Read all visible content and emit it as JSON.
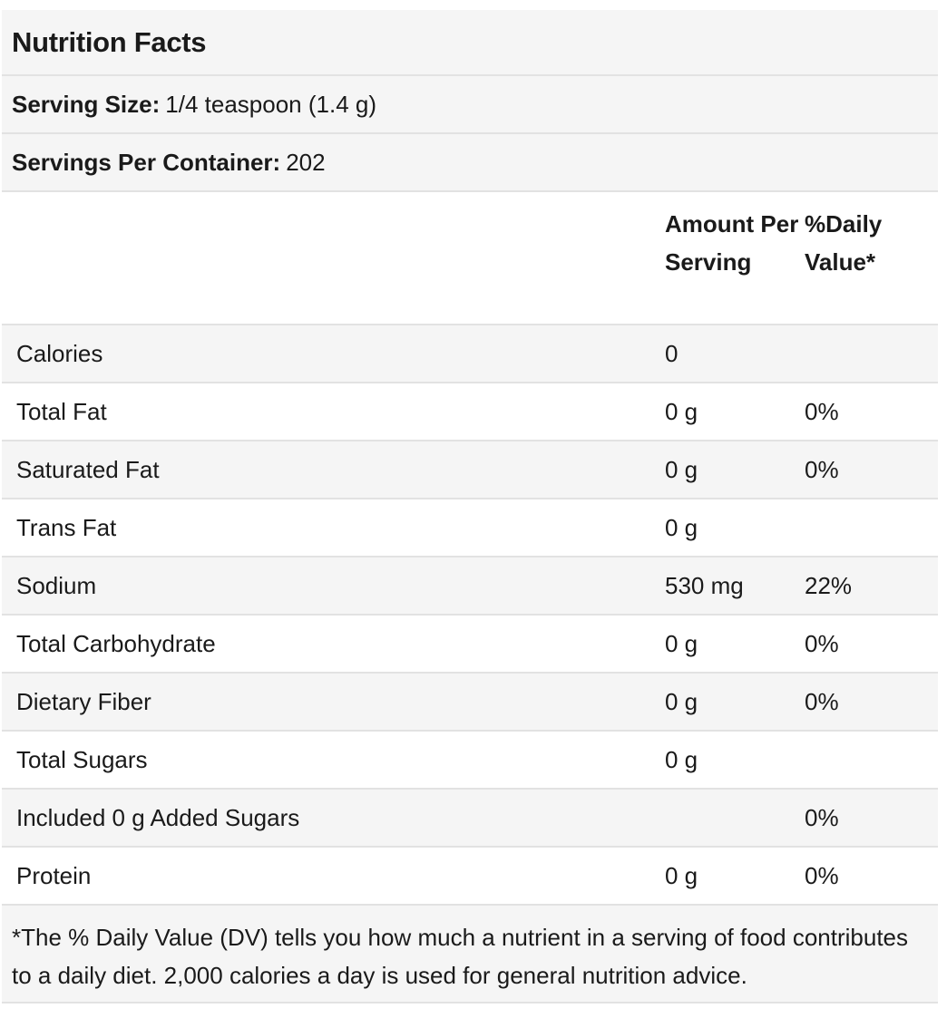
{
  "title": "Nutrition Facts",
  "serving_size": {
    "label": "Serving Size:",
    "value": "1/4 teaspoon (1.4 g)"
  },
  "servings_per_container": {
    "label": "Servings Per Container:",
    "value": "202"
  },
  "columns": {
    "amount": "Amount Per Serving",
    "daily_value": "%Daily Value*"
  },
  "rows": [
    {
      "name": "Calories",
      "amount": "0",
      "dv": ""
    },
    {
      "name": "Total Fat",
      "amount": "0 g",
      "dv": "0%"
    },
    {
      "name": "Saturated Fat",
      "amount": "0 g",
      "dv": "0%"
    },
    {
      "name": "Trans Fat",
      "amount": "0 g",
      "dv": ""
    },
    {
      "name": "Sodium",
      "amount": "530 mg",
      "dv": "22%"
    },
    {
      "name": "Total Carbohydrate",
      "amount": "0 g",
      "dv": "0%"
    },
    {
      "name": "Dietary Fiber",
      "amount": "0 g",
      "dv": "0%"
    },
    {
      "name": "Total Sugars",
      "amount": "0 g",
      "dv": ""
    },
    {
      "name": "Included 0 g Added Sugars",
      "amount": "",
      "dv": "0%"
    },
    {
      "name": "Protein",
      "amount": "0 g",
      "dv": "0%"
    }
  ],
  "footnote": "*The % Daily Value (DV) tells you how much a nutrient in a serving of food contributes to a daily diet. 2,000 calories a day is used for general nutrition advice."
}
